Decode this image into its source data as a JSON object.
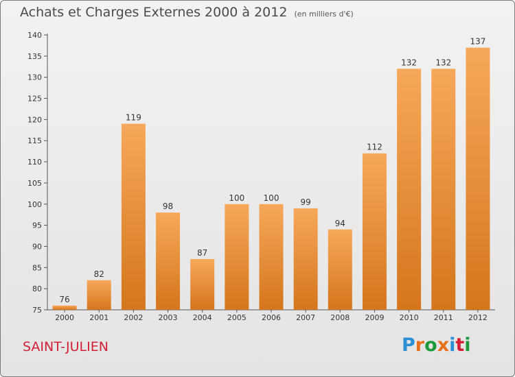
{
  "title": "Achats et Charges Externes 2000 à 2012",
  "unit_note": "(en milliers d'€)",
  "commune": "SAINT-JULIEN",
  "logo": {
    "text": "Proxiti",
    "letter_colors": [
      "#2a8fd4",
      "#e8701a",
      "#1b9a3b",
      "#e8701a",
      "#2a8fd4",
      "#d21f35",
      "#1b9a3b"
    ]
  },
  "colors": {
    "bar_top": "#f7a85a",
    "bar_bottom": "#d4761c",
    "title": "#4a4a4a",
    "commune": "#d21f35"
  },
  "chart_data": {
    "type": "bar",
    "categories": [
      "2000",
      "2001",
      "2002",
      "2003",
      "2004",
      "2005",
      "2006",
      "2007",
      "2008",
      "2009",
      "2010",
      "2011",
      "2012"
    ],
    "values": [
      76,
      82,
      119,
      98,
      87,
      100,
      100,
      99,
      94,
      112,
      132,
      132,
      137
    ],
    "ylim": [
      75,
      140
    ],
    "yticks": [
      75,
      80,
      85,
      90,
      95,
      100,
      105,
      110,
      115,
      120,
      125,
      130,
      135,
      140
    ],
    "grid": false,
    "legend": "none"
  }
}
